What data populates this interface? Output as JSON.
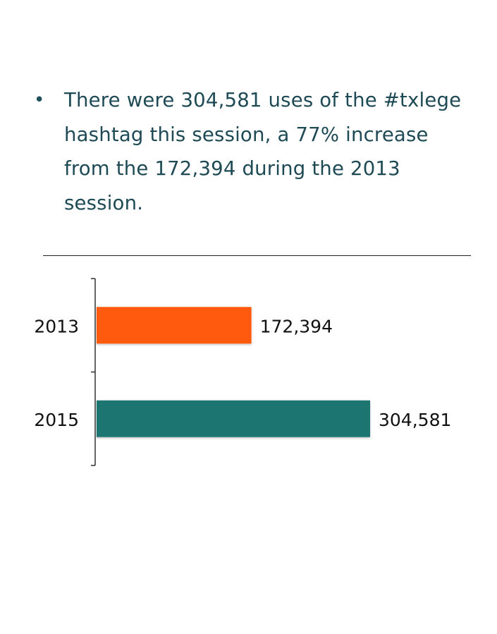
{
  "bullet": {
    "lines": [
      "There were 304,581 uses of the #txlege",
      "hashtag this session, a 77% increase",
      "from the 172,394 during the 2013",
      "session."
    ]
  },
  "chart_data": {
    "type": "bar",
    "orientation": "horizontal",
    "categories": [
      "2013",
      "2015"
    ],
    "values": [
      172394,
      304581
    ],
    "value_labels": [
      "172,394",
      "304,581"
    ],
    "colors": [
      "#ff5a10",
      "#1f7470"
    ],
    "title": "",
    "xlabel": "",
    "ylabel": "",
    "xlim": [
      0,
      304581
    ],
    "grid": false,
    "legend": "none"
  }
}
